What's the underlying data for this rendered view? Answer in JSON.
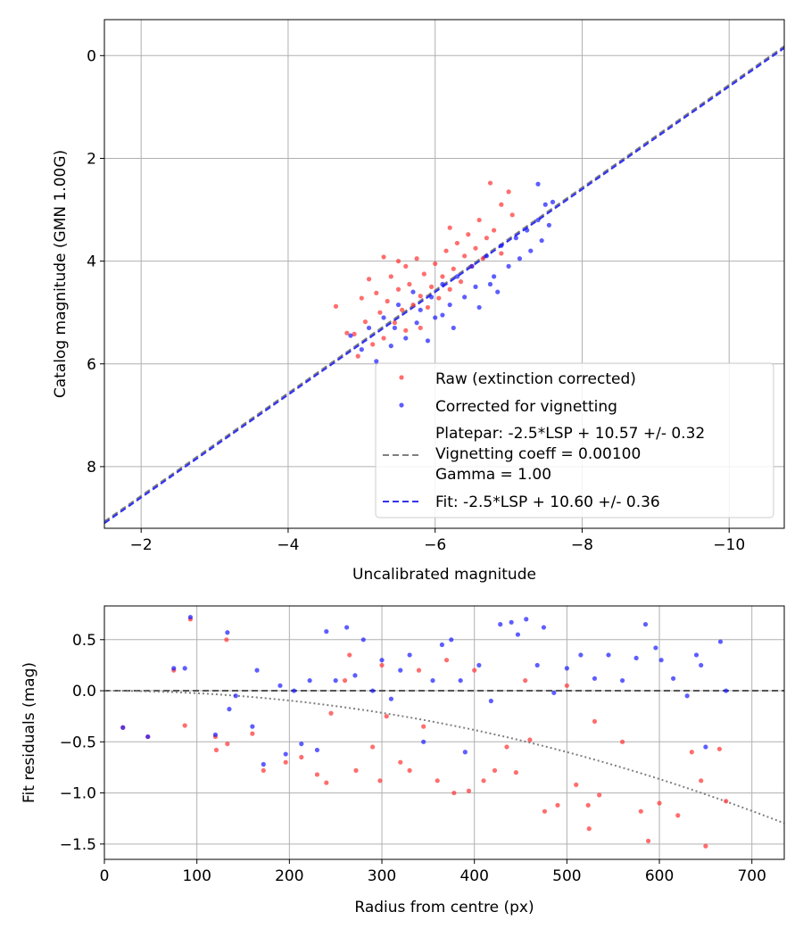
{
  "chart_data": [
    {
      "type": "scatter",
      "xlabel": "Uncalibrated magnitude",
      "ylabel": "Catalog magnitude (GMN 1.00G)",
      "xlim": [
        -1.5,
        -10.75
      ],
      "ylim": [
        9.2,
        -0.7
      ],
      "x_ticks": [
        -2,
        -4,
        -6,
        -8,
        -10
      ],
      "x_tick_labels": [
        "−2",
        "−4",
        "−6",
        "−8",
        "−10"
      ],
      "y_ticks": [
        0,
        2,
        4,
        6,
        8
      ],
      "y_tick_labels": [
        "0",
        "2",
        "4",
        "6",
        "8"
      ],
      "grid": true,
      "legend_position": "lower-right",
      "legend": {
        "raw": "Raw (extinction corrected)",
        "corrected": "Corrected for vignetting",
        "platepar_line1": "Platepar: -2.5*LSP + 10.57 +/- 0.32",
        "platepar_line2": "Vignetting coeff = 0.00100",
        "platepar_line3": "Gamma = 1.00",
        "fit": "Fit: -2.5*LSP + 10.60 +/- 0.36"
      },
      "lines": [
        {
          "name": "Platepar",
          "slope": 1.0,
          "intercept": 10.57,
          "color": "#7f7f7f",
          "style": "dashed"
        },
        {
          "name": "Fit",
          "slope": 1.0,
          "intercept": 10.6,
          "color": "#3333ee",
          "style": "dashed"
        }
      ],
      "series": [
        {
          "name": "Raw (extinction corrected)",
          "color": "#ff3030",
          "points": [
            [
              -4.65,
              4.88
            ],
            [
              -4.8,
              5.4
            ],
            [
              -4.9,
              5.42
            ],
            [
              -4.95,
              5.85
            ],
            [
              -5.0,
              4.72
            ],
            [
              -5.05,
              5.18
            ],
            [
              -5.1,
              4.35
            ],
            [
              -5.15,
              5.62
            ],
            [
              -5.2,
              4.62
            ],
            [
              -5.25,
              5.0
            ],
            [
              -5.3,
              3.92
            ],
            [
              -5.3,
              5.5
            ],
            [
              -5.35,
              4.78
            ],
            [
              -5.4,
              4.3
            ],
            [
              -5.45,
              5.2
            ],
            [
              -5.5,
              4.55
            ],
            [
              -5.55,
              4.95
            ],
            [
              -5.6,
              4.1
            ],
            [
              -5.6,
              5.35
            ],
            [
              -5.65,
              4.45
            ],
            [
              -5.7,
              4.85
            ],
            [
              -5.75,
              3.95
            ],
            [
              -5.8,
              4.68
            ],
            [
              -5.8,
              5.3
            ],
            [
              -5.85,
              4.25
            ],
            [
              -5.9,
              4.9
            ],
            [
              -5.95,
              4.5
            ],
            [
              -6.0,
              4.05
            ],
            [
              -6.05,
              4.72
            ],
            [
              -6.1,
              4.3
            ],
            [
              -6.15,
              3.8
            ],
            [
              -6.2,
              4.55
            ],
            [
              -6.25,
              4.15
            ],
            [
              -6.3,
              3.65
            ],
            [
              -6.35,
              4.4
            ],
            [
              -6.4,
              3.9
            ],
            [
              -6.45,
              3.48
            ],
            [
              -6.5,
              4.1
            ],
            [
              -6.55,
              3.75
            ],
            [
              -6.6,
              3.2
            ],
            [
              -6.65,
              3.95
            ],
            [
              -6.7,
              3.55
            ],
            [
              -6.75,
              2.48
            ],
            [
              -6.8,
              3.4
            ],
            [
              -6.9,
              2.9
            ],
            [
              -7.0,
              2.65
            ],
            [
              -7.05,
              3.1
            ],
            [
              -6.2,
              3.35
            ],
            [
              -5.5,
              4.0
            ],
            [
              -6.9,
              3.85
            ]
          ]
        },
        {
          "name": "Corrected for vignetting",
          "color": "#1a1aff",
          "points": [
            [
              -4.85,
              5.45
            ],
            [
              -5.0,
              5.72
            ],
            [
              -5.1,
              5.3
            ],
            [
              -5.2,
              5.95
            ],
            [
              -5.3,
              5.1
            ],
            [
              -5.4,
              5.65
            ],
            [
              -5.5,
              4.85
            ],
            [
              -5.6,
              5.5
            ],
            [
              -5.7,
              4.6
            ],
            [
              -5.75,
              5.2
            ],
            [
              -5.8,
              4.95
            ],
            [
              -5.9,
              5.55
            ],
            [
              -5.95,
              4.7
            ],
            [
              -6.0,
              5.1
            ],
            [
              -6.1,
              4.45
            ],
            [
              -6.2,
              4.85
            ],
            [
              -6.25,
              5.3
            ],
            [
              -6.3,
              4.3
            ],
            [
              -6.4,
              4.7
            ],
            [
              -6.5,
              4.1
            ],
            [
              -6.55,
              4.5
            ],
            [
              -6.6,
              4.9
            ],
            [
              -6.7,
              3.9
            ],
            [
              -6.8,
              4.3
            ],
            [
              -6.85,
              4.6
            ],
            [
              -6.9,
              3.7
            ],
            [
              -7.0,
              4.1
            ],
            [
              -7.1,
              3.55
            ],
            [
              -7.15,
              3.95
            ],
            [
              -7.25,
              3.4
            ],
            [
              -7.3,
              3.8
            ],
            [
              -7.4,
              3.2
            ],
            [
              -7.45,
              3.6
            ],
            [
              -7.5,
              2.9
            ],
            [
              -7.55,
              3.3
            ],
            [
              -7.4,
              2.5
            ],
            [
              -7.6,
              2.85
            ],
            [
              -6.1,
              5.05
            ],
            [
              -5.45,
              5.3
            ],
            [
              -6.75,
              4.45
            ]
          ]
        }
      ]
    },
    {
      "type": "scatter",
      "xlabel": "Radius from centre (px)",
      "ylabel": "Fit residuals (mag)",
      "xlim": [
        0,
        735
      ],
      "ylim": [
        -1.65,
        0.83
      ],
      "x_ticks": [
        0,
        100,
        200,
        300,
        400,
        500,
        600,
        700
      ],
      "x_tick_labels": [
        "0",
        "100",
        "200",
        "300",
        "400",
        "500",
        "600",
        "700"
      ],
      "y_ticks": [
        0.5,
        0.0,
        -0.5,
        -1.0,
        -1.5
      ],
      "y_tick_labels": [
        "0.5",
        "0.0",
        "−0.5",
        "−1.0",
        "−1.5"
      ],
      "grid": true,
      "lines": [
        {
          "name": "zero",
          "type": "horizontal",
          "y": 0.0,
          "color": "#555555",
          "style": "dashed"
        },
        {
          "name": "vignetting model",
          "type": "quadratic",
          "coefficient": -2.4e-06,
          "color": "#7f7f7f",
          "style": "dotted"
        }
      ],
      "series": [
        {
          "name": "Raw (extinction corrected)",
          "color": "#ff3030",
          "points": [
            [
              20,
              -0.36
            ],
            [
              47,
              -0.45
            ],
            [
              75,
              0.2
            ],
            [
              87,
              -0.34
            ],
            [
              93,
              0.7
            ],
            [
              120,
              -0.45
            ],
            [
              121,
              -0.58
            ],
            [
              132,
              0.5
            ],
            [
              133,
              -0.52
            ],
            [
              160,
              -0.42
            ],
            [
              172,
              -0.78
            ],
            [
              196,
              -0.7
            ],
            [
              213,
              -0.65
            ],
            [
              230,
              -0.82
            ],
            [
              240,
              -0.9
            ],
            [
              245,
              -0.22
            ],
            [
              260,
              0.1
            ],
            [
              272,
              -0.78
            ],
            [
              290,
              -0.55
            ],
            [
              298,
              -0.88
            ],
            [
              305,
              -0.25
            ],
            [
              320,
              -0.7
            ],
            [
              330,
              -0.78
            ],
            [
              345,
              -0.35
            ],
            [
              360,
              -0.88
            ],
            [
              378,
              -1.0
            ],
            [
              394,
              -0.98
            ],
            [
              410,
              -0.88
            ],
            [
              422,
              -0.78
            ],
            [
              435,
              -0.55
            ],
            [
              445,
              -0.8
            ],
            [
              460,
              -0.48
            ],
            [
              476,
              -1.18
            ],
            [
              490,
              -1.12
            ],
            [
              510,
              -0.92
            ],
            [
              523,
              -1.12
            ],
            [
              524,
              -1.35
            ],
            [
              535,
              -1.02
            ],
            [
              580,
              -1.18
            ],
            [
              588,
              -1.47
            ],
            [
              600,
              -1.1
            ],
            [
              620,
              -1.22
            ],
            [
              635,
              -0.6
            ],
            [
              645,
              -0.88
            ],
            [
              650,
              -1.52
            ],
            [
              665,
              -0.57
            ],
            [
              672,
              -1.08
            ],
            [
              265,
              0.35
            ],
            [
              300,
              0.25
            ],
            [
              340,
              0.2
            ],
            [
              370,
              0.3
            ],
            [
              400,
              0.2
            ],
            [
              455,
              0.1
            ],
            [
              500,
              0.05
            ],
            [
              530,
              -0.3
            ],
            [
              560,
              -0.5
            ]
          ]
        },
        {
          "name": "Corrected for vignetting",
          "color": "#1a1aff",
          "points": [
            [
              20,
              -0.36
            ],
            [
              47,
              -0.45
            ],
            [
              75,
              0.22
            ],
            [
              87,
              0.22
            ],
            [
              93,
              0.72
            ],
            [
              120,
              -0.43
            ],
            [
              133,
              0.57
            ],
            [
              135,
              -0.18
            ],
            [
              142,
              -0.05
            ],
            [
              160,
              -0.35
            ],
            [
              165,
              0.2
            ],
            [
              172,
              -0.72
            ],
            [
              190,
              0.05
            ],
            [
              196,
              -0.62
            ],
            [
              205,
              0.0
            ],
            [
              213,
              -0.52
            ],
            [
              222,
              0.1
            ],
            [
              230,
              -0.58
            ],
            [
              240,
              0.58
            ],
            [
              250,
              0.1
            ],
            [
              262,
              0.62
            ],
            [
              271,
              0.15
            ],
            [
              280,
              0.5
            ],
            [
              290,
              0.0
            ],
            [
              300,
              0.3
            ],
            [
              310,
              -0.08
            ],
            [
              320,
              0.2
            ],
            [
              330,
              0.35
            ],
            [
              345,
              -0.5
            ],
            [
              355,
              0.1
            ],
            [
              365,
              0.45
            ],
            [
              375,
              0.5
            ],
            [
              385,
              0.1
            ],
            [
              390,
              -0.6
            ],
            [
              405,
              0.25
            ],
            [
              418,
              -0.1
            ],
            [
              428,
              0.65
            ],
            [
              440,
              0.67
            ],
            [
              447,
              0.55
            ],
            [
              456,
              0.7
            ],
            [
              468,
              0.25
            ],
            [
              475,
              0.62
            ],
            [
              486,
              -0.02
            ],
            [
              500,
              0.22
            ],
            [
              515,
              0.35
            ],
            [
              530,
              0.12
            ],
            [
              545,
              0.35
            ],
            [
              560,
              0.1
            ],
            [
              575,
              0.32
            ],
            [
              585,
              0.65
            ],
            [
              596,
              0.42
            ],
            [
              602,
              0.3
            ],
            [
              615,
              0.12
            ],
            [
              630,
              -0.05
            ],
            [
              640,
              0.35
            ],
            [
              645,
              0.25
            ],
            [
              650,
              -0.55
            ],
            [
              666,
              0.48
            ],
            [
              672,
              0.0
            ]
          ]
        }
      ]
    }
  ]
}
